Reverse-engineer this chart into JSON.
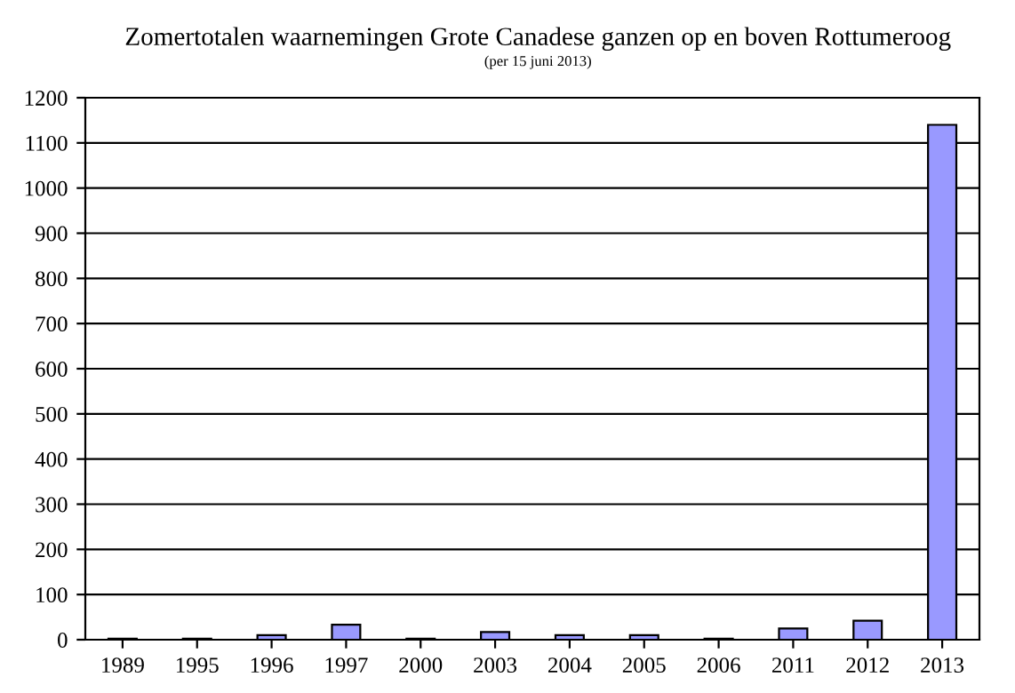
{
  "chart_data": {
    "type": "bar",
    "title": "Zomertotalen waarnemingen Grote Canadese ganzen op en boven Rottumeroog",
    "subtitle": "(per 15 juni 2013)",
    "categories": [
      "1989",
      "1995",
      "1996",
      "1997",
      "2000",
      "2003",
      "2004",
      "2005",
      "2006",
      "2011",
      "2012",
      "2013"
    ],
    "values": [
      2,
      2,
      10,
      33,
      2,
      17,
      10,
      10,
      2,
      25,
      42,
      1140
    ],
    "color": "#9999ff",
    "ylim": [
      0,
      1200
    ],
    "yticks": [
      0,
      100,
      200,
      300,
      400,
      500,
      600,
      700,
      800,
      900,
      1000,
      1100,
      1200
    ],
    "grid": "y",
    "legend": false
  }
}
